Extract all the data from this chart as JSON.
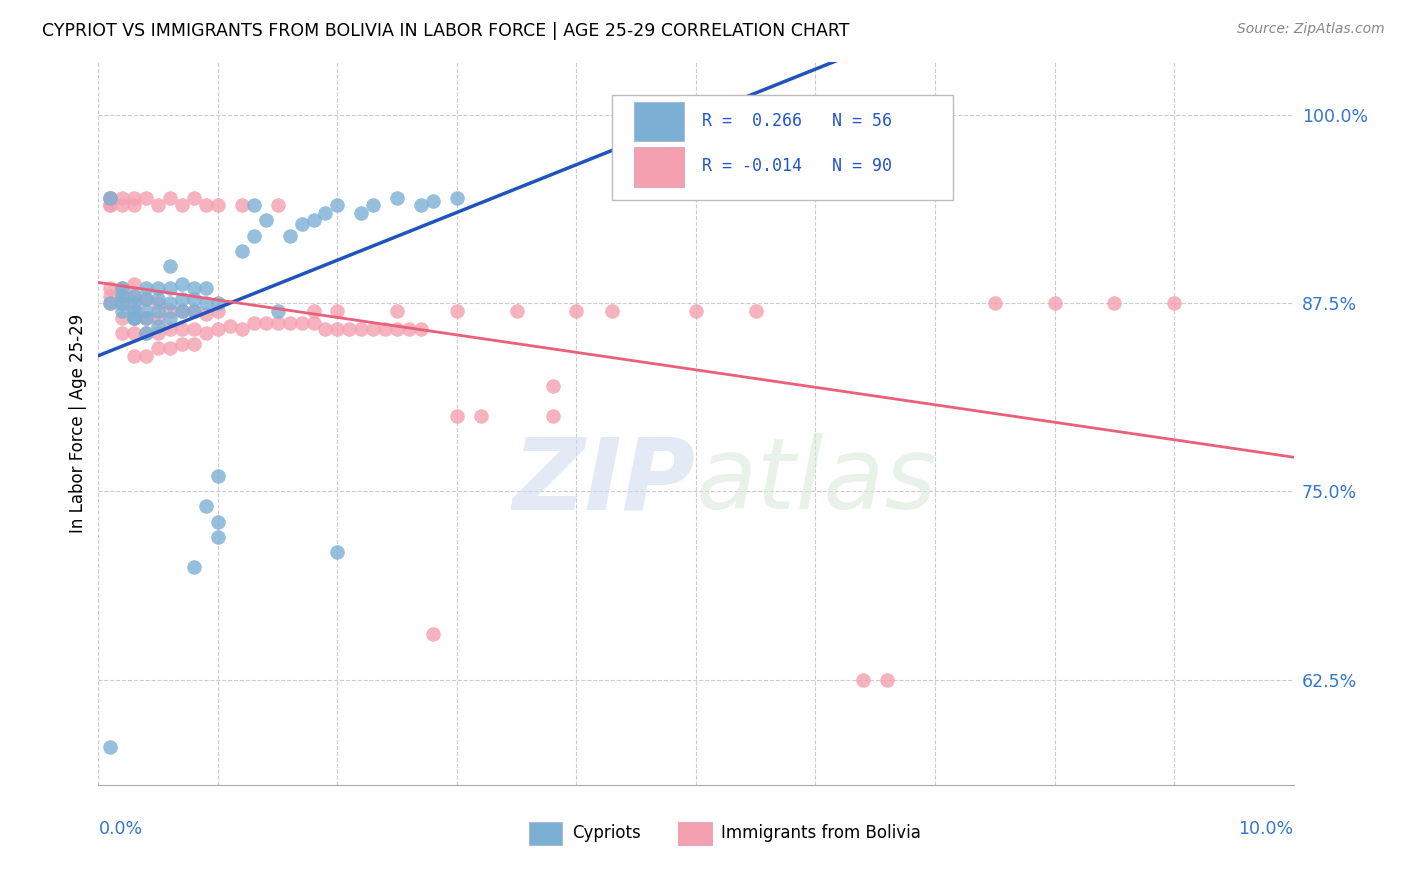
{
  "title": "CYPRIOT VS IMMIGRANTS FROM BOLIVIA IN LABOR FORCE | AGE 25-29 CORRELATION CHART",
  "source": "Source: ZipAtlas.com",
  "ylabel": "In Labor Force | Age 25-29",
  "ytick_labels": [
    "62.5%",
    "75.0%",
    "87.5%",
    "100.0%"
  ],
  "ytick_values": [
    0.625,
    0.75,
    0.875,
    1.0
  ],
  "xmin": 0.0,
  "xmax": 0.1,
  "ymin": 0.555,
  "ymax": 1.035,
  "R_cypriot": 0.266,
  "N_cypriot": 56,
  "R_bolivia": -0.014,
  "N_bolivia": 90,
  "cypriot_color": "#7bafd4",
  "bolivia_color": "#f4a0b0",
  "trend_cypriot_color": "#2255bb",
  "trend_bolivia_color": "#e8607a",
  "cypriot_scatter_x": [
    0.001,
    0.002,
    0.002,
    0.002,
    0.003,
    0.003,
    0.003,
    0.003,
    0.004,
    0.004,
    0.004,
    0.004,
    0.004,
    0.005,
    0.005,
    0.005,
    0.005,
    0.006,
    0.006,
    0.006,
    0.007,
    0.007,
    0.007,
    0.008,
    0.008,
    0.008,
    0.009,
    0.009,
    0.01,
    0.01,
    0.01,
    0.012,
    0.013,
    0.014,
    0.015,
    0.016,
    0.017,
    0.018,
    0.019,
    0.02,
    0.022,
    0.023,
    0.025,
    0.027,
    0.028,
    0.03,
    0.001,
    0.001,
    0.002,
    0.003,
    0.006,
    0.008,
    0.009,
    0.01,
    0.013,
    0.02
  ],
  "cypriot_scatter_y": [
    0.58,
    0.875,
    0.88,
    0.885,
    0.865,
    0.87,
    0.875,
    0.88,
    0.855,
    0.865,
    0.87,
    0.878,
    0.885,
    0.86,
    0.87,
    0.878,
    0.885,
    0.865,
    0.875,
    0.885,
    0.87,
    0.878,
    0.888,
    0.87,
    0.878,
    0.885,
    0.875,
    0.885,
    0.73,
    0.76,
    0.875,
    0.91,
    0.92,
    0.93,
    0.87,
    0.92,
    0.928,
    0.93,
    0.935,
    0.94,
    0.935,
    0.94,
    0.945,
    0.94,
    0.943,
    0.945,
    0.945,
    0.875,
    0.87,
    0.865,
    0.9,
    0.7,
    0.74,
    0.72,
    0.94,
    0.71
  ],
  "bolivia_scatter_x": [
    0.001,
    0.001,
    0.001,
    0.001,
    0.001,
    0.002,
    0.002,
    0.002,
    0.002,
    0.002,
    0.003,
    0.003,
    0.003,
    0.003,
    0.003,
    0.003,
    0.004,
    0.004,
    0.004,
    0.004,
    0.005,
    0.005,
    0.005,
    0.005,
    0.006,
    0.006,
    0.006,
    0.007,
    0.007,
    0.007,
    0.008,
    0.008,
    0.008,
    0.009,
    0.009,
    0.01,
    0.01,
    0.011,
    0.012,
    0.013,
    0.014,
    0.015,
    0.016,
    0.017,
    0.018,
    0.019,
    0.02,
    0.021,
    0.022,
    0.023,
    0.024,
    0.025,
    0.026,
    0.027,
    0.028,
    0.001,
    0.001,
    0.002,
    0.002,
    0.003,
    0.003,
    0.004,
    0.005,
    0.006,
    0.007,
    0.008,
    0.009,
    0.01,
    0.012,
    0.015,
    0.018,
    0.02,
    0.025,
    0.03,
    0.035,
    0.04,
    0.043,
    0.05,
    0.055,
    0.038,
    0.064,
    0.066,
    0.075,
    0.08,
    0.085,
    0.09,
    0.03,
    0.032,
    0.038
  ],
  "bolivia_scatter_y": [
    0.94,
    0.945,
    0.875,
    0.88,
    0.885,
    0.855,
    0.865,
    0.875,
    0.88,
    0.885,
    0.84,
    0.855,
    0.865,
    0.872,
    0.88,
    0.888,
    0.84,
    0.855,
    0.865,
    0.878,
    0.845,
    0.855,
    0.865,
    0.875,
    0.845,
    0.858,
    0.87,
    0.848,
    0.858,
    0.87,
    0.848,
    0.858,
    0.87,
    0.855,
    0.868,
    0.858,
    0.87,
    0.86,
    0.858,
    0.862,
    0.862,
    0.862,
    0.862,
    0.862,
    0.862,
    0.858,
    0.858,
    0.858,
    0.858,
    0.858,
    0.858,
    0.858,
    0.858,
    0.858,
    0.655,
    0.945,
    0.94,
    0.945,
    0.94,
    0.945,
    0.94,
    0.945,
    0.94,
    0.945,
    0.94,
    0.945,
    0.94,
    0.94,
    0.94,
    0.94,
    0.87,
    0.87,
    0.87,
    0.87,
    0.87,
    0.87,
    0.87,
    0.87,
    0.87,
    0.82,
    0.625,
    0.625,
    0.875,
    0.875,
    0.875,
    0.875,
    0.8,
    0.8,
    0.8
  ]
}
